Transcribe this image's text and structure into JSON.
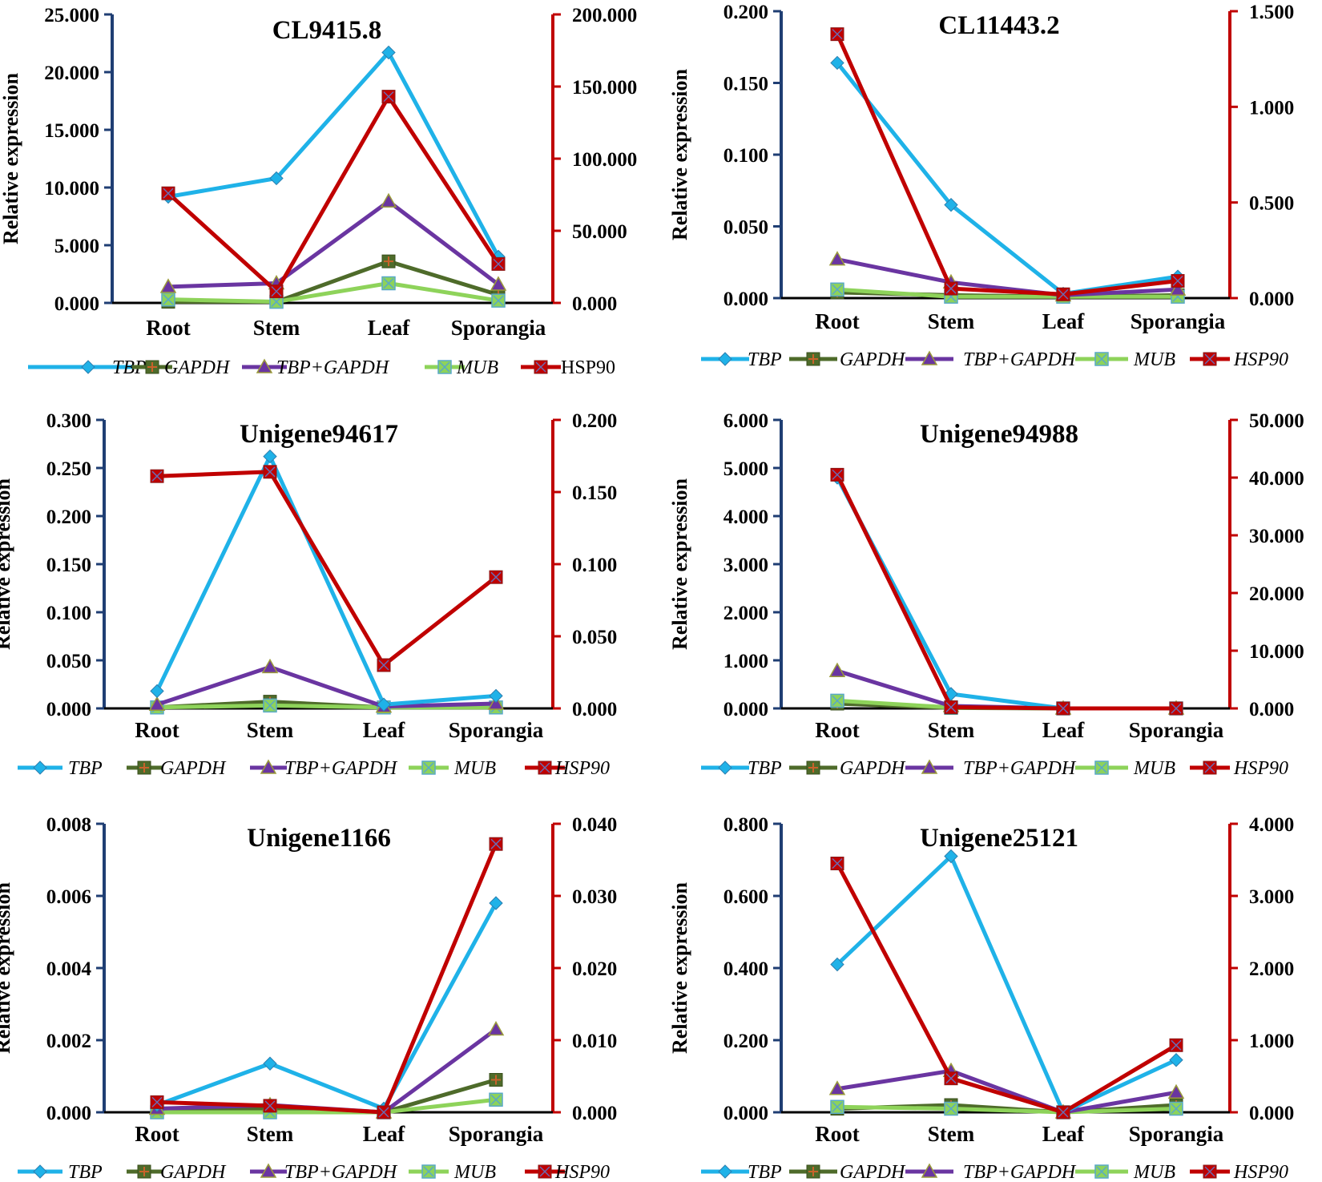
{
  "series_names": [
    "TBP",
    "GAPDH",
    "TBP+GAPDH",
    "MUB",
    "HSP90"
  ],
  "series_axis": [
    "left",
    "left",
    "left",
    "left",
    "right"
  ],
  "series_colors": [
    "#1fb2e8",
    "#4e6b2a",
    "#6a35a1",
    "#8ed35a",
    "#c00000"
  ],
  "left_axis_color": "#1f3e73",
  "right_axis_color": "#c00000",
  "chart_data": [
    {
      "type": "line",
      "title": "CL9415.8",
      "ylabel": "Relative expression",
      "categories": [
        "Root",
        "Stem",
        "Leaf",
        "Sporangia"
      ],
      "ylim_left": [
        0,
        25
      ],
      "ylim_right": [
        0,
        200
      ],
      "yticks_left": [
        "0.000",
        "5.000",
        "10.000",
        "15.000",
        "20.000",
        "25.000"
      ],
      "yticks_right": [
        "0.000",
        "50.000",
        "100.000",
        "150.000",
        "200.000"
      ],
      "legend_labels": [
        "TBP",
        "GAPDH",
        "TBP+GAPDH",
        "MUB",
        "HSP90"
      ],
      "legend_italic": [
        true,
        true,
        true,
        true,
        false
      ],
      "series": [
        {
          "name": "TBP",
          "axis": "left",
          "values": [
            9.2,
            10.8,
            21.7,
            4.0
          ]
        },
        {
          "name": "GAPDH",
          "axis": "left",
          "values": [
            0.1,
            0.1,
            3.6,
            0.7
          ]
        },
        {
          "name": "TBP+GAPDH",
          "axis": "left",
          "values": [
            1.4,
            1.7,
            8.8,
            1.6
          ]
        },
        {
          "name": "MUB",
          "axis": "left",
          "values": [
            0.3,
            0.1,
            1.7,
            0.2
          ]
        },
        {
          "name": "HSP90",
          "axis": "right",
          "values": [
            76.0,
            8.0,
            143.0,
            27.0
          ]
        }
      ]
    },
    {
      "type": "line",
      "title": "CL11443.2",
      "ylabel": "Relative expression",
      "categories": [
        "Root",
        "Stem",
        "Leaf",
        "Sporangia"
      ],
      "ylim_left": [
        0,
        0.2
      ],
      "ylim_right": [
        0,
        1.5
      ],
      "yticks_left": [
        "0.000",
        "0.050",
        "0.100",
        "0.150",
        "0.200"
      ],
      "yticks_right": [
        "0.000",
        "0.500",
        "1.000",
        "1.500"
      ],
      "legend_labels": [
        "TBP",
        "GAPDH",
        "TBP+GAPDH",
        "MUB",
        "HSP90"
      ],
      "legend_italic": [
        true,
        true,
        true,
        true,
        true
      ],
      "series": [
        {
          "name": "TBP",
          "axis": "left",
          "values": [
            0.164,
            0.065,
            0.003,
            0.015
          ]
        },
        {
          "name": "GAPDH",
          "axis": "left",
          "values": [
            0.004,
            0.002,
            0.001,
            0.002
          ]
        },
        {
          "name": "TBP+GAPDH",
          "axis": "left",
          "values": [
            0.027,
            0.011,
            0.002,
            0.006
          ]
        },
        {
          "name": "MUB",
          "axis": "left",
          "values": [
            0.006,
            0.001,
            0.001,
            0.001
          ]
        },
        {
          "name": "HSP90",
          "axis": "right",
          "values": [
            1.38,
            0.05,
            0.02,
            0.09
          ]
        }
      ]
    },
    {
      "type": "line",
      "title": "Unigene94617",
      "ylabel": "Relative expression",
      "categories": [
        "Root",
        "Stem",
        "Leaf",
        "Sporangia"
      ],
      "ylim_left": [
        0,
        0.3
      ],
      "ylim_right": [
        0,
        0.2
      ],
      "yticks_left": [
        "0.000",
        "0.050",
        "0.100",
        "0.150",
        "0.200",
        "0.250",
        "0.300"
      ],
      "yticks_right": [
        "0.000",
        "0.050",
        "0.100",
        "0.150",
        "0.200"
      ],
      "legend_labels": [
        "TBP",
        "GAPDH",
        "TBP+GAPDH",
        "MUB",
        "HSP90"
      ],
      "legend_italic": [
        true,
        true,
        true,
        true,
        true
      ],
      "series": [
        {
          "name": "TBP",
          "axis": "left",
          "values": [
            0.018,
            0.262,
            0.004,
            0.013
          ]
        },
        {
          "name": "GAPDH",
          "axis": "left",
          "values": [
            0.001,
            0.007,
            0.001,
            0.001
          ]
        },
        {
          "name": "TBP+GAPDH",
          "axis": "left",
          "values": [
            0.004,
            0.043,
            0.002,
            0.005
          ]
        },
        {
          "name": "MUB",
          "axis": "left",
          "values": [
            0.001,
            0.003,
            0.001,
            0.001
          ]
        },
        {
          "name": "HSP90",
          "axis": "right",
          "values": [
            0.161,
            0.164,
            0.03,
            0.091
          ]
        }
      ]
    },
    {
      "type": "line",
      "title": "Unigene94988",
      "ylabel": "Relative expression",
      "categories": [
        "Root",
        "Stem",
        "Leaf",
        "Sporangia"
      ],
      "ylim_left": [
        0,
        6
      ],
      "ylim_right": [
        0,
        50
      ],
      "yticks_left": [
        "0.000",
        "1.000",
        "2.000",
        "3.000",
        "4.000",
        "5.000",
        "6.000"
      ],
      "yticks_right": [
        "0.000",
        "10.000",
        "20.000",
        "30.000",
        "40.000",
        "50.000"
      ],
      "legend_labels": [
        "TBP",
        "GAPDH",
        "TBP+GAPDH",
        "MUB",
        "HSP90"
      ],
      "legend_italic": [
        true,
        true,
        true,
        true,
        true
      ],
      "series": [
        {
          "name": "TBP",
          "axis": "left",
          "values": [
            4.8,
            0.3,
            0.0,
            0.0
          ]
        },
        {
          "name": "GAPDH",
          "axis": "left",
          "values": [
            0.1,
            0.01,
            0.0,
            0.0
          ]
        },
        {
          "name": "TBP+GAPDH",
          "axis": "left",
          "values": [
            0.78,
            0.05,
            0.0,
            0.0
          ]
        },
        {
          "name": "MUB",
          "axis": "left",
          "values": [
            0.16,
            0.02,
            0.0,
            0.0
          ]
        },
        {
          "name": "HSP90",
          "axis": "right",
          "values": [
            40.5,
            0.2,
            0.0,
            0.0
          ]
        }
      ]
    },
    {
      "type": "line",
      "title": "Unigene1166",
      "ylabel": "Relative expression",
      "categories": [
        "Root",
        "Stem",
        "Leaf",
        "Sporangia"
      ],
      "ylim_left": [
        0,
        0.008
      ],
      "ylim_right": [
        0,
        0.04
      ],
      "yticks_left": [
        "0.000",
        "0.002",
        "0.004",
        "0.006",
        "0.008"
      ],
      "yticks_right": [
        "0.000",
        "0.010",
        "0.020",
        "0.030",
        "0.040"
      ],
      "legend_labels": [
        "TBP",
        "GAPDH",
        "TBP+GAPDH",
        "MUB",
        "HSP90"
      ],
      "legend_italic": [
        true,
        true,
        true,
        true,
        true
      ],
      "series": [
        {
          "name": "TBP",
          "axis": "left",
          "values": [
            0.0002,
            0.00135,
            0.0001,
            0.0058
          ]
        },
        {
          "name": "GAPDH",
          "axis": "left",
          "values": [
            0.0,
            0.0001,
            0.0,
            0.0009
          ]
        },
        {
          "name": "TBP+GAPDH",
          "axis": "left",
          "values": [
            0.0001,
            0.0002,
            0.0,
            0.0023
          ]
        },
        {
          "name": "MUB",
          "axis": "left",
          "values": [
            0.0,
            0.0,
            0.0,
            0.00035
          ]
        },
        {
          "name": "HSP90",
          "axis": "right",
          "values": [
            0.0014,
            0.0009,
            0.0,
            0.0372
          ]
        }
      ]
    },
    {
      "type": "line",
      "title": "Unigene25121",
      "ylabel": "Relative expression",
      "categories": [
        "Root",
        "Stem",
        "Leaf",
        "Sporangia"
      ],
      "ylim_left": [
        0,
        0.8
      ],
      "ylim_right": [
        0,
        4
      ],
      "yticks_left": [
        "0.000",
        "0.200",
        "0.400",
        "0.600",
        "0.800"
      ],
      "yticks_right": [
        "0.000",
        "1.000",
        "2.000",
        "3.000",
        "4.000"
      ],
      "legend_labels": [
        "TBP",
        "GAPDH",
        "TBP+GAPDH",
        "MUB",
        "HSP90"
      ],
      "legend_italic": [
        true,
        true,
        true,
        true,
        true
      ],
      "series": [
        {
          "name": "TBP",
          "axis": "left",
          "values": [
            0.41,
            0.71,
            0.0,
            0.145
          ]
        },
        {
          "name": "GAPDH",
          "axis": "left",
          "values": [
            0.01,
            0.02,
            0.0,
            0.02
          ]
        },
        {
          "name": "TBP+GAPDH",
          "axis": "left",
          "values": [
            0.065,
            0.115,
            0.0,
            0.055
          ]
        },
        {
          "name": "MUB",
          "axis": "left",
          "values": [
            0.015,
            0.01,
            0.0,
            0.01
          ]
        },
        {
          "name": "HSP90",
          "axis": "right",
          "values": [
            3.45,
            0.47,
            0.0,
            0.93
          ]
        }
      ]
    }
  ]
}
